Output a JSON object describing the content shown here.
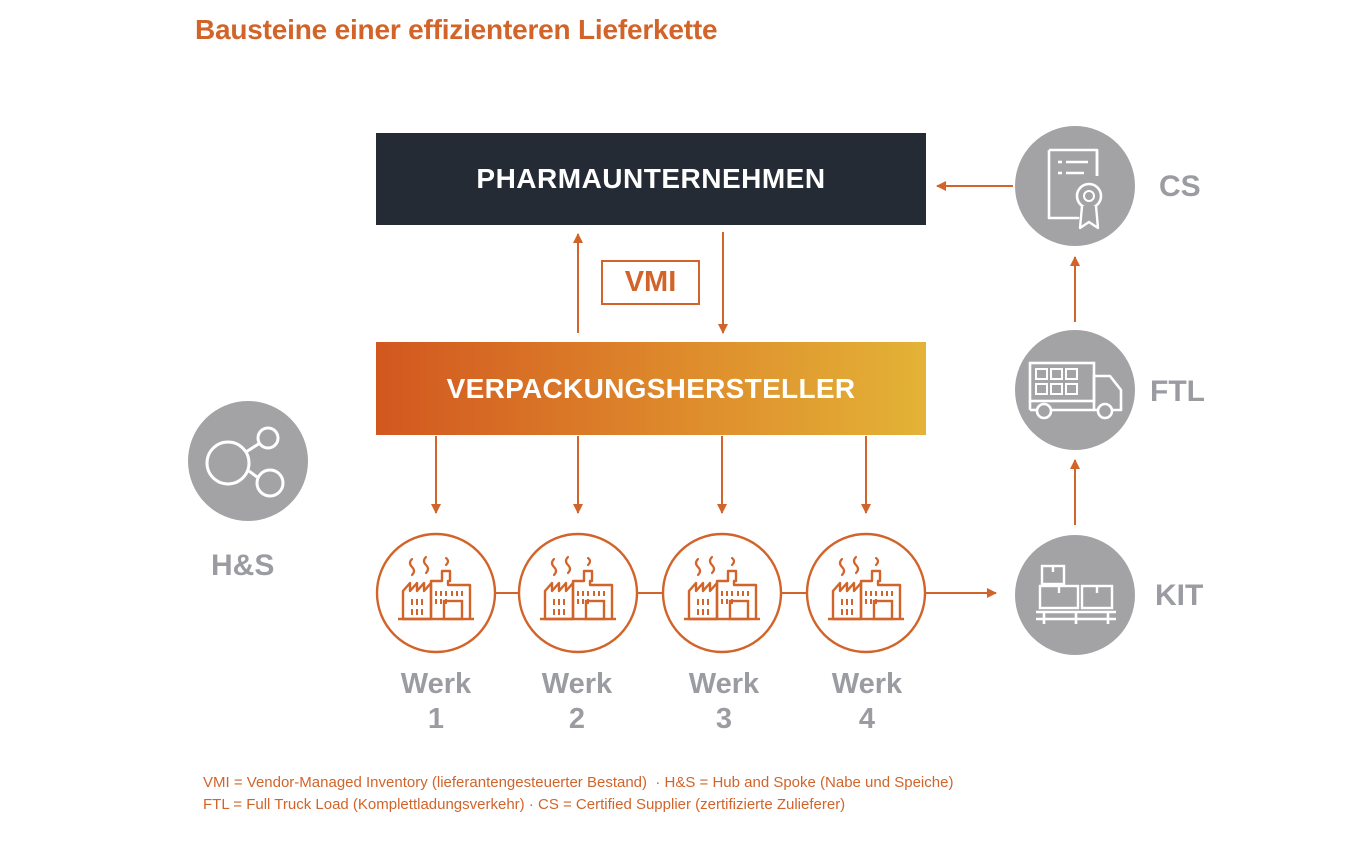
{
  "title": "Bausteine einer effizienteren Lieferkette",
  "nodes": {
    "pharma": "PHARMAUNTERNEHMEN",
    "vmi": "VMI",
    "verpackung": "VERPACKUNGSHERSTELLER",
    "hs": "H&S",
    "cs": "CS",
    "ftl": "FTL",
    "kit": "KIT"
  },
  "werke": [
    {
      "word": "Werk",
      "num": "1"
    },
    {
      "word": "Werk",
      "num": "2"
    },
    {
      "word": "Werk",
      "num": "3"
    },
    {
      "word": "Werk",
      "num": "4"
    }
  ],
  "legend": {
    "line1": "VMI = Vendor-Managed Inventory (lieferantengesteuerter Bestand)  · H&S = Hub and Spoke (Nabe und Speiche)",
    "line2": "FTL = Full Truck Load (Komplettladungsverkehr) · CS = Certified Supplier (zertifizierte Zulieferer)"
  },
  "colors": {
    "orange": "#d2642a",
    "dark": "#252b35",
    "grey": "#9b9ca1",
    "circle_grey": "#a3a3a6"
  }
}
